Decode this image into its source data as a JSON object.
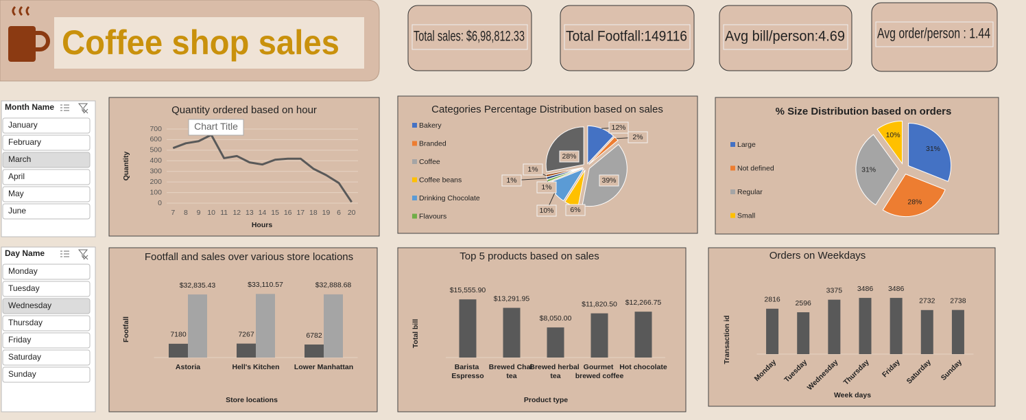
{
  "header": {
    "title": "Coffee shop sales"
  },
  "kpis": [
    "Total sales: $6,98,812.33",
    "Total Footfall:149116",
    "Avg bill/person:4.69",
    "Avg order/person : 1.44"
  ],
  "slicers": [
    {
      "title": "Month Name",
      "items": [
        "January",
        "February",
        "March",
        "April",
        "May",
        "June"
      ],
      "selected": [
        2
      ]
    },
    {
      "title": "Day Name",
      "items": [
        "Monday",
        "Tuesday",
        "Wednesday",
        "Thursday",
        "Friday",
        "Saturday",
        "Sunday"
      ],
      "selected": [
        2
      ]
    }
  ],
  "chart_data": [
    {
      "type": "line",
      "title": "Quantity ordered based on hour",
      "annotation": "Chart Title",
      "categories": [
        "7",
        "8",
        "9",
        "10",
        "11",
        "12",
        "13",
        "14",
        "15",
        "16",
        "17",
        "18",
        "19",
        "6",
        "20"
      ],
      "values": [
        520,
        565,
        585,
        645,
        425,
        445,
        385,
        365,
        410,
        420,
        420,
        325,
        265,
        190,
        10
      ],
      "color": "#595959",
      "ylim": [
        0,
        700
      ],
      "yticks": [
        0,
        100,
        200,
        300,
        400,
        500,
        600,
        700
      ],
      "grid": true,
      "xlabel": "Hours",
      "ylabel": "Quantity"
    },
    {
      "type": "pie",
      "title": "Categories Percentage Distribution based on sales",
      "categories": [
        "Bakery",
        "Branded",
        "Coffee",
        "Coffee beans",
        "Drinking Chocolate",
        "Flavours",
        null,
        null,
        null
      ],
      "values": [
        12,
        2,
        39,
        6,
        10,
        1,
        1,
        1,
        28
      ],
      "value_labels": [
        "12%",
        "2%",
        "39%",
        "6%",
        "10%",
        "1%",
        "1%",
        "1%",
        "28%"
      ],
      "colors": [
        "#4472c4",
        "#ed7d31",
        "#a5a5a5",
        "#ffc000",
        "#5b9bd5",
        "#70ad47",
        "#264478",
        "#9e480e",
        "#636363"
      ]
    },
    {
      "type": "pie",
      "title": "% Size Distribution based on orders",
      "categories": [
        "Large",
        "Not defined",
        "Regular",
        "Small"
      ],
      "values": [
        31,
        28,
        31,
        10
      ],
      "value_labels": [
        "31%",
        "28%",
        "31%",
        "10%"
      ],
      "colors": [
        "#4472c4",
        "#ed7d31",
        "#a5a5a5",
        "#ffc000"
      ]
    },
    {
      "type": "bar",
      "title": "Footfall and sales over various store locations",
      "categories": [
        "Astoria",
        "Hell's Kitchen",
        "Lower Manhattan"
      ],
      "series": [
        {
          "color": "#595959",
          "values": [
            7180,
            7267,
            6782
          ]
        },
        {
          "color": "#a5a5a5",
          "values": [
            32835.43,
            33110.57,
            32888.68
          ],
          "value_labels": [
            "$32,835.43",
            "$33,110.57",
            "$32,888.68"
          ]
        }
      ],
      "ylim": [
        0,
        40000
      ],
      "xlabel": "Store locations",
      "ylabel": "Footfall"
    },
    {
      "type": "bar",
      "title": "Top 5 products based on sales",
      "categories": [
        "Barista Espresso",
        "Brewed Chai tea",
        "Brewed herbal tea",
        "Gourmet brewed coffee",
        "Hot chocolate"
      ],
      "values": [
        15555.9,
        13291.95,
        8050,
        11820.5,
        12266.75
      ],
      "value_labels": [
        "$15,555.90",
        "$13,291.95",
        "$8,050.00",
        "$11,820.50",
        "$12,266.75"
      ],
      "color": "#595959",
      "ylim": [
        0,
        20000
      ],
      "xlabel": "Product type",
      "ylabel": "Total bill"
    },
    {
      "type": "bar",
      "title": "Orders on Weekdays",
      "categories": [
        "Monday",
        "Tuesday",
        "Wednesday",
        "Thursday",
        "Friday",
        "Saturday",
        "Sunday"
      ],
      "values": [
        2816,
        2596,
        3375,
        3486,
        3486,
        2732,
        2738
      ],
      "color": "#595959",
      "ylim": [
        0,
        4000
      ],
      "xlabel": "Week days",
      "ylabel": "Transaction id"
    }
  ]
}
